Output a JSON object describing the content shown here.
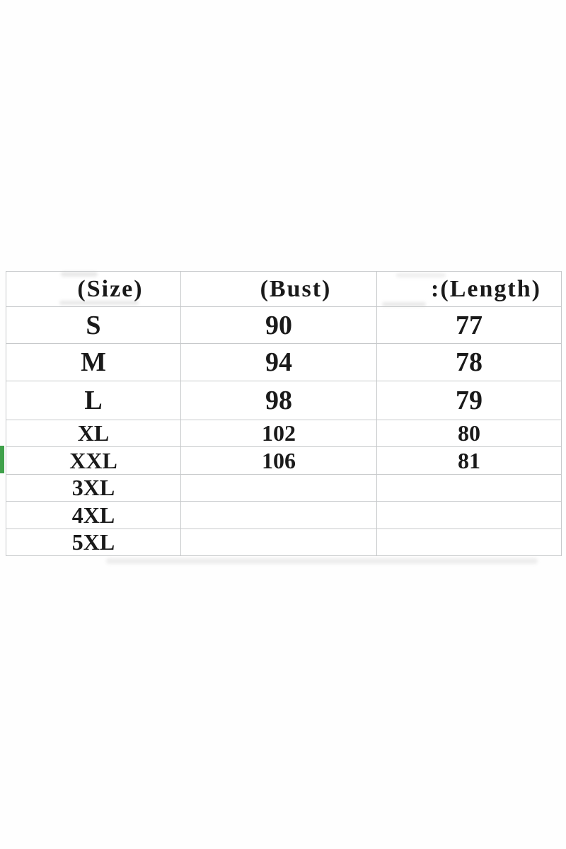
{
  "table": {
    "columns": [
      {
        "key": "size",
        "label": "(Size)"
      },
      {
        "key": "bust",
        "label": "(Bust)"
      },
      {
        "key": "length",
        "label": ":(Length)"
      }
    ],
    "rows": [
      {
        "size": "S",
        "bust": "90",
        "length": "77"
      },
      {
        "size": "M",
        "bust": "94",
        "length": "78"
      },
      {
        "size": "L",
        "bust": "98",
        "length": "79"
      },
      {
        "size": "XL",
        "bust": "102",
        "length": "80"
      },
      {
        "size": "XXL",
        "bust": "106",
        "length": "81"
      },
      {
        "size": "3XL",
        "bust": "",
        "length": ""
      },
      {
        "size": "4XL",
        "bust": "",
        "length": ""
      },
      {
        "size": "5XL",
        "bust": "",
        "length": ""
      }
    ],
    "highlighted_row": "XXL"
  },
  "colors": {
    "grid_line": "#c7c9cb",
    "text": "#1a1a1a",
    "selection_indicator_green": "#3fa14a",
    "background": "#ffffff"
  }
}
